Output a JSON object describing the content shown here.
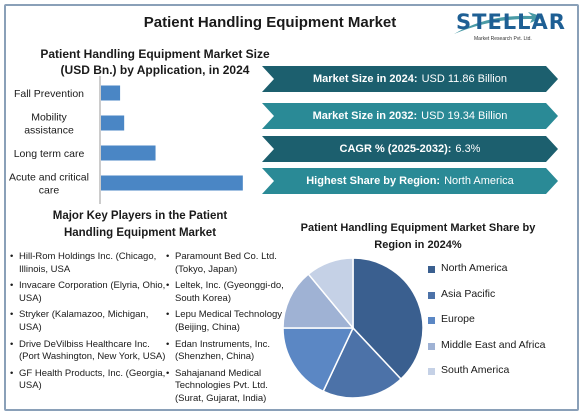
{
  "title": "Patient Handling Equipment Market",
  "logo": {
    "name": "STELLAR",
    "tagline": "Market Research Pvt. Ltd."
  },
  "info_boxes": [
    {
      "label": "Market Size in 2024:",
      "value": "USD 11.86 Billion",
      "color": "#1c5f6e"
    },
    {
      "label": "Market Size in 2032:",
      "value": "USD 19.34 Billion",
      "color": "#2a8a96"
    },
    {
      "label": "CAGR % (2025-2032):",
      "value": "6.3%",
      "color": "#1c5f6e"
    },
    {
      "label": "Highest Share by Region:",
      "value": "North America",
      "color": "#2a8a96"
    }
  ],
  "key_players": {
    "title": "Major Key Players in the Patient Handling Equipment Market",
    "col1": [
      "Hill-Rom Holdings Inc. (Chicago, Illinois, USA",
      "Invacare Corporation (Elyria, Ohio, USA)",
      "Stryker (Kalamazoo, Michigan, USA)",
      "Drive DeVilbiss Healthcare Inc. (Port Washington, New York, USA)",
      "GF Health Products, Inc. (Georgia, USA)"
    ],
    "col2": [
      "Paramount Bed Co. Ltd. (Tokyo, Japan)",
      "Leltek, Inc. (Gyeonggi-do, South Korea)",
      "Lepu Medical Technology (Beijing, China)",
      "Edan Instruments, Inc. (Shenzhen, China)",
      "Sahajanand Medical Technologies Pvt. Ltd. (Surat, Gujarat, India)"
    ]
  },
  "chart_data": [
    {
      "type": "bar",
      "orientation": "horizontal",
      "title": "Patient Handling Equipment Market Size (USD Bn.) by Application, in 2024",
      "categories": [
        "Fall Prevention",
        "Mobility assistance",
        "Long term care",
        "Acute and critical care"
      ],
      "values": [
        0.7,
        0.85,
        2.0,
        5.2
      ],
      "xlim": [
        0,
        5.5
      ],
      "grid": false,
      "bar_color": "#4a86c5"
    },
    {
      "type": "pie",
      "title": "Patient Handling Equipment Market Share by Region in 2024%",
      "labels": [
        "North America",
        "Asia Pacific",
        "Europe",
        "Middle East and Africa",
        "South America"
      ],
      "values": [
        38,
        19,
        18,
        14,
        11
      ],
      "colors": [
        "#3a5f8f",
        "#4c72a8",
        "#5b87c4",
        "#9fb2d4",
        "#c5d1e6"
      ],
      "legend_position": "right"
    }
  ]
}
